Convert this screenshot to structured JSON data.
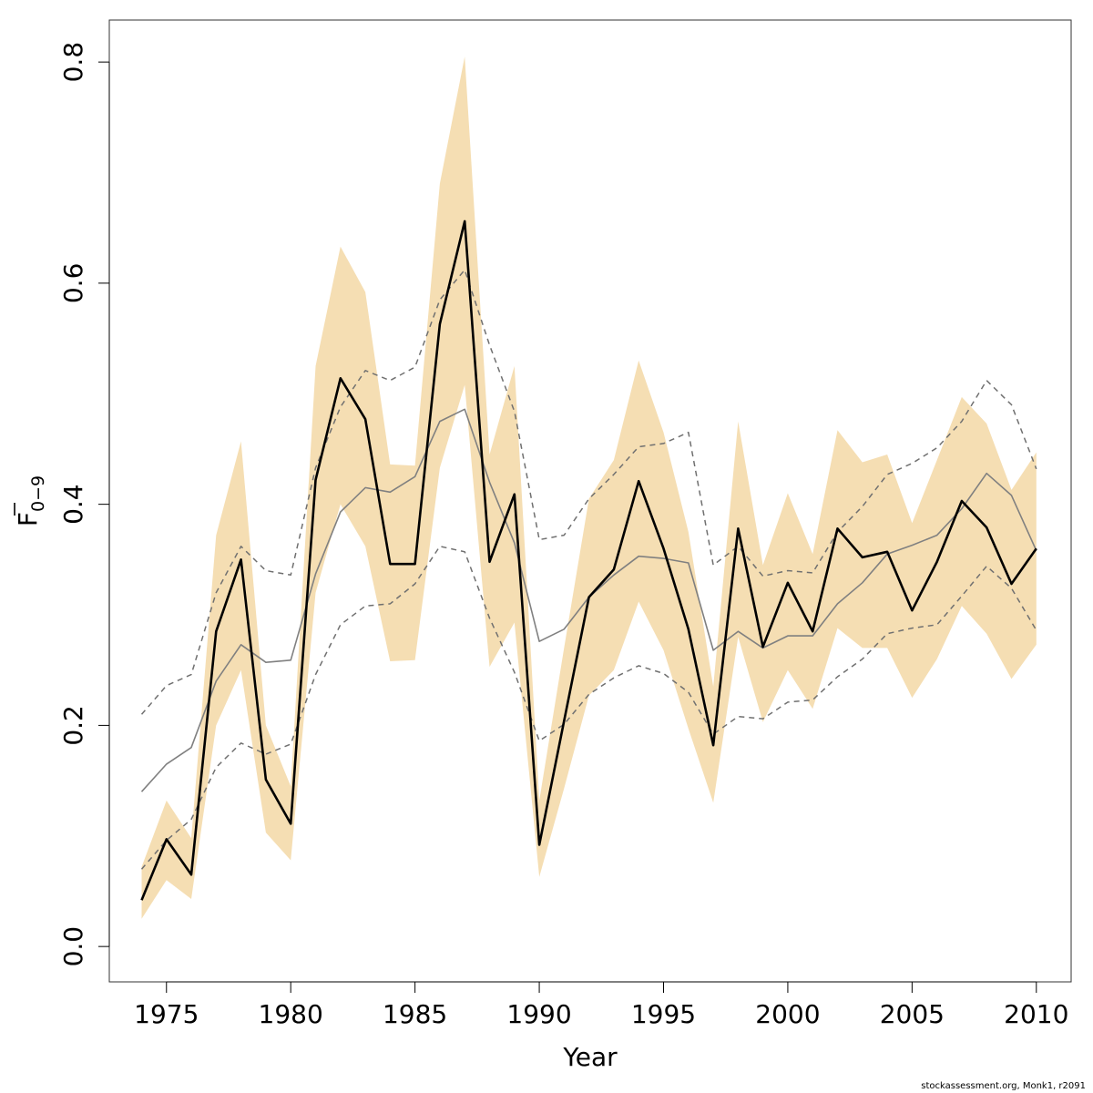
{
  "chart_data": {
    "type": "line",
    "xlabel": "Year",
    "ylabel": "F",
    "ylabel_subscript": "0−9",
    "xlim": [
      1972.7,
      2011.4
    ],
    "ylim": [
      -0.032,
      0.838
    ],
    "x_ticks": [
      1975,
      1980,
      1985,
      1990,
      1995,
      2000,
      2005,
      2010
    ],
    "y_ticks": [
      0.0,
      0.2,
      0.4,
      0.6,
      0.8
    ],
    "y_tick_labels": [
      "0.0",
      "0.2",
      "0.4",
      "0.6",
      "0.8"
    ],
    "grid": false,
    "colors": {
      "band": "#f5deb3",
      "estimate": "#000000",
      "previous": "#808080",
      "previous_ci": "#707070"
    },
    "x": [
      1974,
      1975,
      1976,
      1977,
      1978,
      1979,
      1980,
      1981,
      1982,
      1983,
      1984,
      1985,
      1986,
      1987,
      1988,
      1989,
      1990,
      1991,
      1992,
      1993,
      1994,
      1995,
      1996,
      1997,
      1998,
      1999,
      2000,
      2001,
      2002,
      2003,
      2004,
      2005,
      2006,
      2007,
      2008,
      2009,
      2010
    ],
    "band": {
      "lower": [
        0.025,
        0.06,
        0.043,
        0.2,
        0.25,
        0.103,
        0.078,
        0.32,
        0.4,
        0.362,
        0.258,
        0.259,
        0.433,
        0.508,
        0.253,
        0.293,
        0.063,
        0.143,
        0.227,
        0.25,
        0.312,
        0.268,
        0.197,
        0.13,
        0.28,
        0.203,
        0.25,
        0.215,
        0.288,
        0.27,
        0.27,
        0.225,
        0.26,
        0.308,
        0.283,
        0.242,
        0.273
      ],
      "upper": [
        0.072,
        0.132,
        0.098,
        0.372,
        0.457,
        0.2,
        0.145,
        0.525,
        0.633,
        0.592,
        0.436,
        0.435,
        0.69,
        0.805,
        0.445,
        0.525,
        0.132,
        0.27,
        0.405,
        0.44,
        0.53,
        0.465,
        0.375,
        0.235,
        0.475,
        0.345,
        0.41,
        0.355,
        0.467,
        0.438,
        0.445,
        0.383,
        0.44,
        0.497,
        0.473,
        0.413,
        0.447
      ]
    },
    "series": [
      {
        "style": "solid-thick",
        "values": [
          0.042,
          0.097,
          0.065,
          0.285,
          0.35,
          0.151,
          0.111,
          0.422,
          0.514,
          0.477,
          0.346,
          0.346,
          0.563,
          0.656,
          0.348,
          0.409,
          0.092,
          0.204,
          0.316,
          0.341,
          0.421,
          0.36,
          0.287,
          0.182,
          0.378,
          0.271,
          0.329,
          0.285,
          0.378,
          0.352,
          0.357,
          0.304,
          0.348,
          0.403,
          0.379,
          0.328,
          0.36
        ]
      },
      {
        "style": "solid-thin",
        "values": [
          0.14,
          0.165,
          0.18,
          0.24,
          0.273,
          0.257,
          0.259,
          0.337,
          0.393,
          0.415,
          0.411,
          0.425,
          0.475,
          0.486,
          0.42,
          0.365,
          0.276,
          0.287,
          0.316,
          0.336,
          0.353,
          0.351,
          0.347,
          0.268,
          0.285,
          0.27,
          0.281,
          0.281,
          0.31,
          0.329,
          0.355,
          0.363,
          0.372,
          0.396,
          0.428,
          0.408,
          0.358
        ]
      },
      {
        "style": "dashed",
        "values": [
          0.21,
          0.236,
          0.246,
          0.32,
          0.362,
          0.34,
          0.336,
          0.433,
          0.488,
          0.521,
          0.512,
          0.524,
          0.585,
          0.612,
          0.544,
          0.484,
          0.368,
          0.372,
          0.405,
          0.427,
          0.452,
          0.455,
          0.465,
          0.345,
          0.362,
          0.335,
          0.34,
          0.338,
          0.375,
          0.398,
          0.427,
          0.437,
          0.451,
          0.475,
          0.512,
          0.49,
          0.432
        ]
      },
      {
        "style": "dashed",
        "values": [
          0.07,
          0.096,
          0.115,
          0.162,
          0.184,
          0.174,
          0.183,
          0.246,
          0.291,
          0.308,
          0.31,
          0.328,
          0.362,
          0.357,
          0.297,
          0.248,
          0.186,
          0.201,
          0.228,
          0.243,
          0.254,
          0.247,
          0.23,
          0.192,
          0.208,
          0.206,
          0.221,
          0.223,
          0.244,
          0.26,
          0.283,
          0.288,
          0.291,
          0.317,
          0.344,
          0.324,
          0.286
        ]
      }
    ]
  },
  "footer": {
    "text": "stockassessment.org, Monk1, r2091"
  }
}
